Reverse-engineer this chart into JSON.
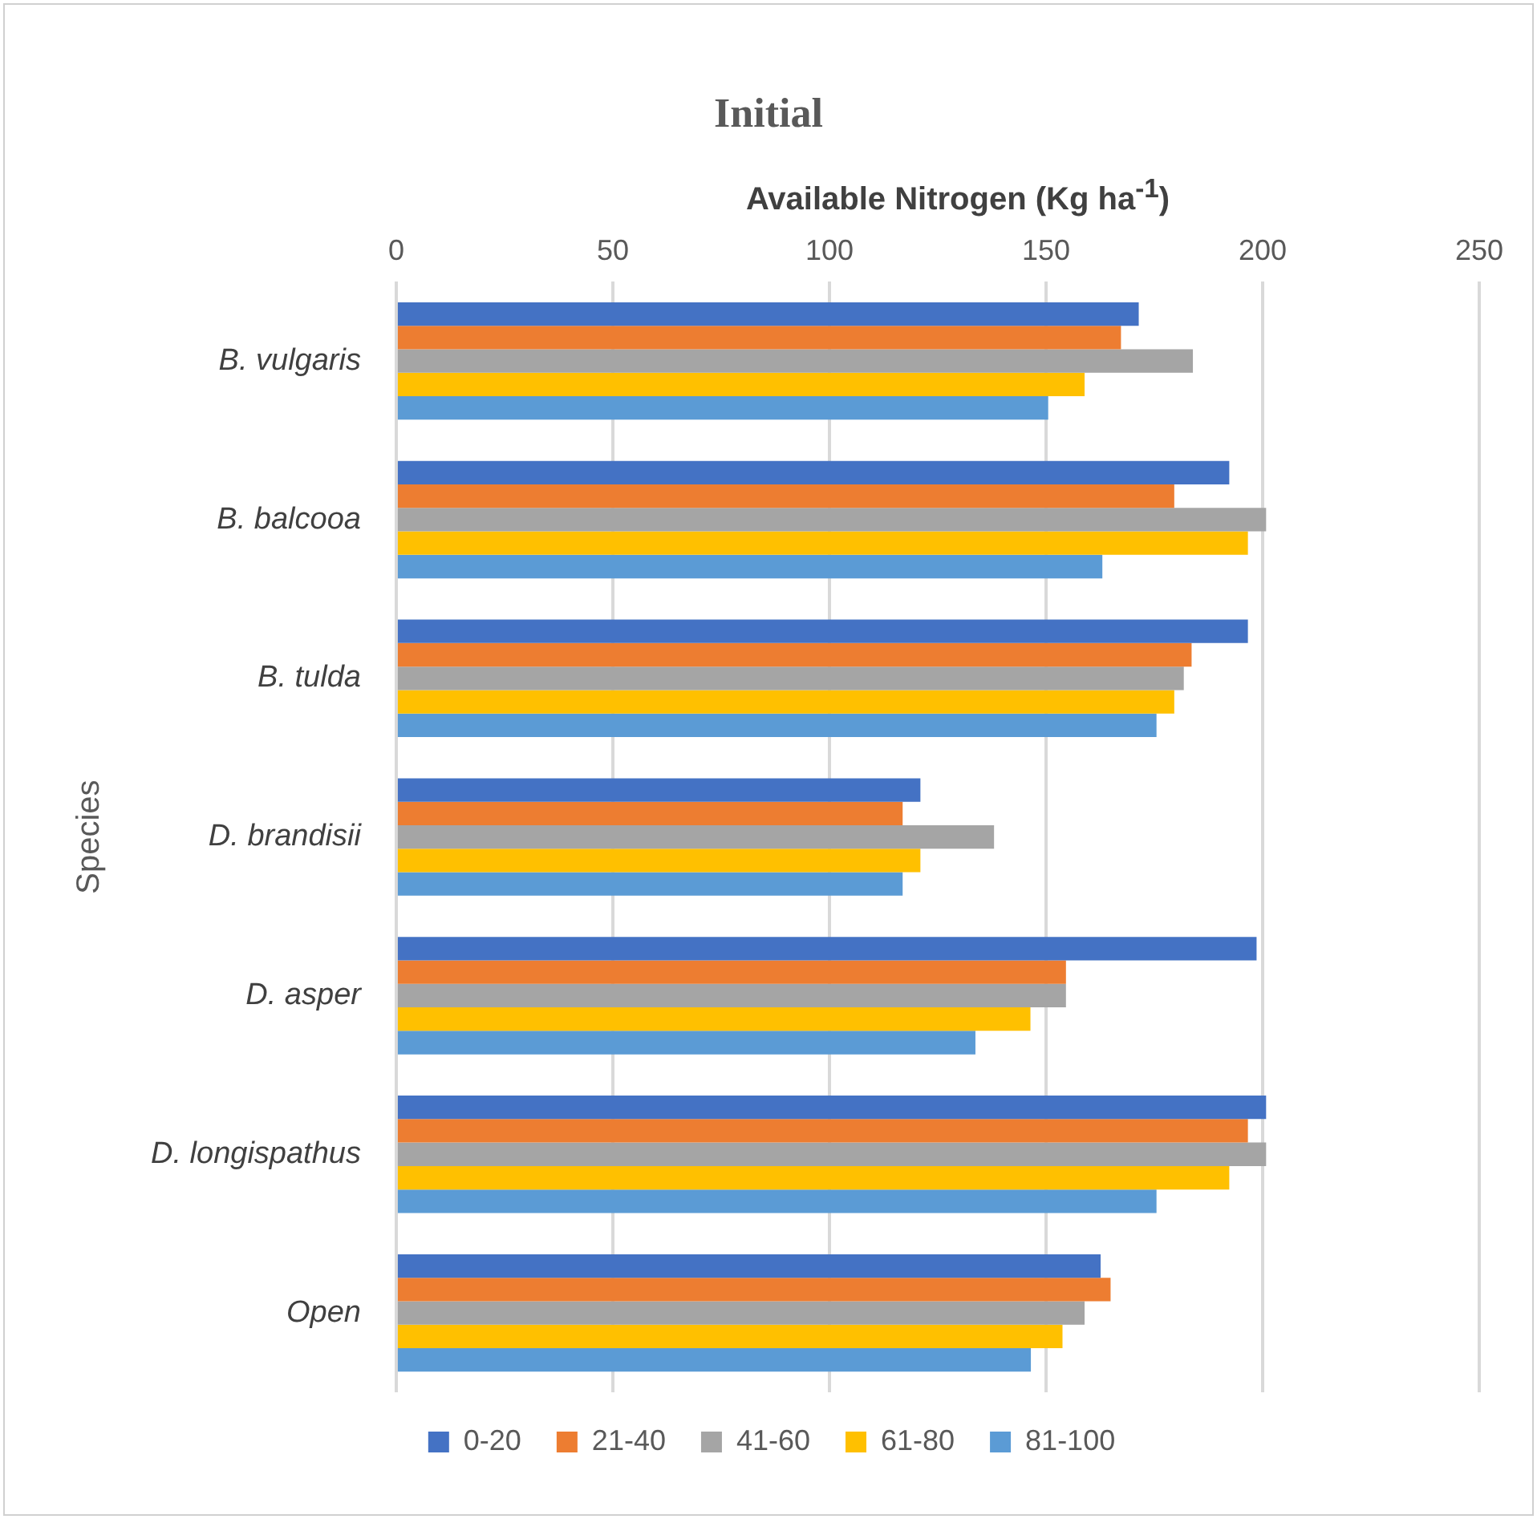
{
  "chart_data": {
    "type": "bar",
    "orientation": "horizontal",
    "title": "Initial",
    "xlabel": "Available Nitrogen (Kg ha$^{-1}$)",
    "ylabel": "Species",
    "categories": [
      "B. vulgaris",
      "B. balcooa",
      "B. tulda",
      "D. brandisii",
      "D. asper",
      "D. longispathus",
      "Open"
    ],
    "series": [
      {
        "name": "0-20",
        "color": "#4472c4",
        "values": [
          171.4,
          192.3,
          196.6,
          121,
          198.6,
          200.8,
          162.6
        ]
      },
      {
        "name": "21-40",
        "color": "#ed7d31",
        "values": [
          167.3,
          179.6,
          183.6,
          116.9,
          154.6,
          196.6,
          164.9
        ]
      },
      {
        "name": "41-60",
        "color": "#a5a5a5",
        "values": [
          183.9,
          200.8,
          181.8,
          138,
          154.6,
          200.8,
          158.9
        ]
      },
      {
        "name": "61-80",
        "color": "#ffc000",
        "values": [
          158.9,
          196.6,
          179.6,
          121,
          146.4,
          192.3,
          153.8
        ]
      },
      {
        "name": "81-100",
        "color": "#5b9bd5",
        "values": [
          150.5,
          163,
          175.5,
          116.9,
          133.7,
          175.5,
          146.5
        ]
      }
    ],
    "xlim": [
      0,
      250
    ],
    "xticks": [
      0,
      50,
      100,
      150,
      200,
      250
    ],
    "grid": "x",
    "legend": "bottom"
  }
}
